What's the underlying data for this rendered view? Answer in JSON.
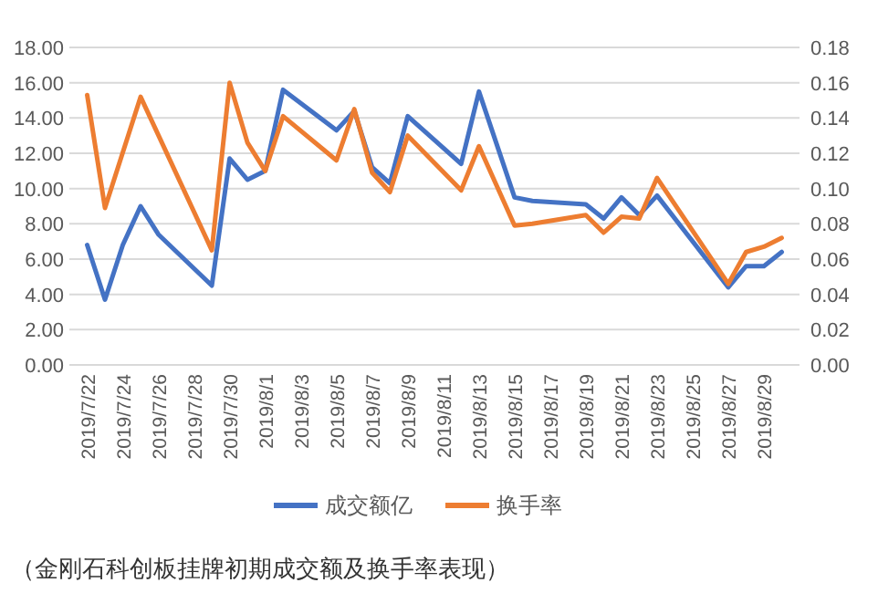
{
  "chart_data": {
    "type": "line",
    "xlim": [
      "2019-07-21",
      "2019-08-31"
    ],
    "xticks": [
      {
        "value": "2019-07-22",
        "label": "2019/7/22"
      },
      {
        "value": "2019-07-24",
        "label": "2019/7/24"
      },
      {
        "value": "2019-07-26",
        "label": "2019/7/26"
      },
      {
        "value": "2019-07-28",
        "label": "2019/7/28"
      },
      {
        "value": "2019-07-30",
        "label": "2019/7/30"
      },
      {
        "value": "2019-08-01",
        "label": "2019/8/1"
      },
      {
        "value": "2019-08-03",
        "label": "2019/8/3"
      },
      {
        "value": "2019-08-05",
        "label": "2019/8/5"
      },
      {
        "value": "2019-08-07",
        "label": "2019/8/7"
      },
      {
        "value": "2019-08-09",
        "label": "2019/8/9"
      },
      {
        "value": "2019-08-11",
        "label": "2019/8/11"
      },
      {
        "value": "2019-08-13",
        "label": "2019/8/13"
      },
      {
        "value": "2019-08-15",
        "label": "2019/8/15"
      },
      {
        "value": "2019-08-17",
        "label": "2019/8/17"
      },
      {
        "value": "2019-08-19",
        "label": "2019/8/19"
      },
      {
        "value": "2019-08-21",
        "label": "2019/8/21"
      },
      {
        "value": "2019-08-23",
        "label": "2019/8/23"
      },
      {
        "value": "2019-08-25",
        "label": "2019/8/25"
      },
      {
        "value": "2019-08-27",
        "label": "2019/8/27"
      },
      {
        "value": "2019-08-29",
        "label": "2019/8/29"
      }
    ],
    "ylim": [
      0,
      18
    ],
    "yticks": [
      {
        "value": 0,
        "label": "0.00"
      },
      {
        "value": 2,
        "label": "2.00"
      },
      {
        "value": 4,
        "label": "4.00"
      },
      {
        "value": 6,
        "label": "6.00"
      },
      {
        "value": 8,
        "label": "8.00"
      },
      {
        "value": 10,
        "label": "10.00"
      },
      {
        "value": 12,
        "label": "12.00"
      },
      {
        "value": 14,
        "label": "14.00"
      },
      {
        "value": 16,
        "label": "16.00"
      },
      {
        "value": 18,
        "label": "18.00"
      }
    ],
    "y2lim": [
      0,
      0.18
    ],
    "y2ticks": [
      {
        "value": 0,
        "label": "0.00"
      },
      {
        "value": 0.02,
        "label": "0.02"
      },
      {
        "value": 0.04,
        "label": "0.04"
      },
      {
        "value": 0.06,
        "label": "0.06"
      },
      {
        "value": 0.08,
        "label": "0.08"
      },
      {
        "value": 0.1,
        "label": "0.10"
      },
      {
        "value": 0.12,
        "label": "0.12"
      },
      {
        "value": 0.14,
        "label": "0.14"
      },
      {
        "value": 0.16,
        "label": "0.16"
      },
      {
        "value": 0.18,
        "label": "0.18"
      }
    ],
    "grid": "y",
    "legend": "bottom",
    "series": [
      {
        "name": "成交额亿",
        "color": "#4472c4",
        "x": [
          "2019-07-22",
          "2019-07-23",
          "2019-07-24",
          "2019-07-25",
          "2019-07-26",
          "2019-07-29",
          "2019-07-30",
          "2019-07-31",
          "2019-08-01",
          "2019-08-02",
          "2019-08-05",
          "2019-08-06",
          "2019-08-07",
          "2019-08-08",
          "2019-08-09",
          "2019-08-12",
          "2019-08-13",
          "2019-08-15",
          "2019-08-16",
          "2019-08-19",
          "2019-08-20",
          "2019-08-21",
          "2019-08-22",
          "2019-08-23",
          "2019-08-27",
          "2019-08-28",
          "2019-08-29",
          "2019-08-30"
        ],
        "values": [
          6.8,
          3.7,
          6.8,
          9.0,
          7.4,
          4.5,
          11.7,
          10.5,
          11.0,
          15.6,
          13.3,
          14.4,
          11.2,
          10.3,
          14.1,
          11.4,
          15.5,
          9.5,
          9.3,
          9.1,
          8.3,
          9.5,
          8.5,
          9.6,
          4.4,
          5.6,
          5.6,
          6.4
        ]
      },
      {
        "name": "换手率",
        "color": "#ed7d31",
        "axis": "y2",
        "x": [
          "2019-07-22",
          "2019-07-23",
          "2019-07-25",
          "2019-07-29",
          "2019-07-30",
          "2019-07-31",
          "2019-08-01",
          "2019-08-02",
          "2019-08-05",
          "2019-08-06",
          "2019-08-07",
          "2019-08-08",
          "2019-08-09",
          "2019-08-12",
          "2019-08-13",
          "2019-08-15",
          "2019-08-16",
          "2019-08-19",
          "2019-08-20",
          "2019-08-21",
          "2019-08-22",
          "2019-08-23",
          "2019-08-27",
          "2019-08-28",
          "2019-08-29",
          "2019-08-30"
        ],
        "values": [
          0.153,
          0.089,
          0.152,
          0.065,
          0.16,
          0.126,
          0.11,
          0.141,
          0.116,
          0.145,
          0.109,
          0.098,
          0.13,
          0.099,
          0.124,
          0.079,
          0.08,
          0.085,
          0.075,
          0.084,
          0.083,
          0.106,
          0.046,
          0.064,
          0.067,
          0.072
        ]
      }
    ],
    "annotations": [
      "（金刚石科创板挂牌初期成交额及换手率表现）"
    ]
  }
}
